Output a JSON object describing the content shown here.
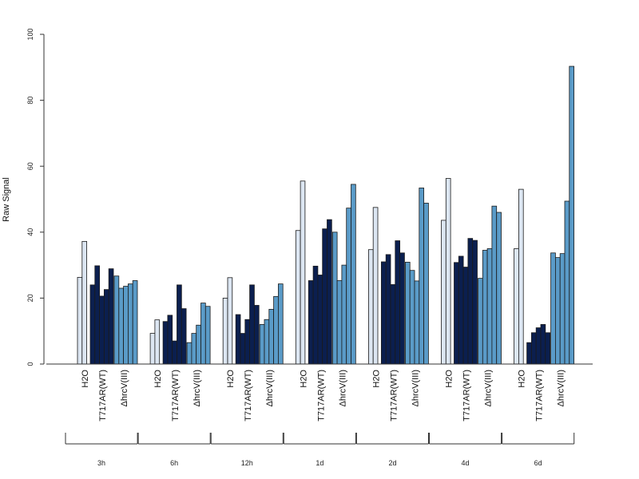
{
  "chart_data": {
    "type": "bar",
    "ylabel": "Raw Signal",
    "xlabel": "",
    "title": "",
    "ylim": [
      0,
      100
    ],
    "yticks": [
      "0",
      "20",
      "40",
      "60",
      "80",
      "100"
    ],
    "conditions": [
      "H2O",
      "T717AR(WT)",
      "ΔhrcV(III)"
    ],
    "condition_colors": [
      "#dce6f2",
      "#0b1f4f",
      "#5a9bc8"
    ],
    "groups": [
      {
        "label": "3h",
        "series": [
          {
            "condition": "H2O",
            "values": [
              26.3,
              37.2
            ]
          },
          {
            "condition": "T717AR(WT)",
            "values": [
              24.0,
              29.8,
              20.6,
              22.6,
              28.9
            ]
          },
          {
            "condition": "ΔhrcV(III)",
            "values": [
              26.7,
              23.0,
              23.6,
              24.3,
              25.3
            ]
          }
        ]
      },
      {
        "label": "6h",
        "series": [
          {
            "condition": "H2O",
            "values": [
              9.3,
              13.4
            ]
          },
          {
            "condition": "T717AR(WT)",
            "values": [
              12.9,
              14.8,
              7.0,
              24.0,
              16.8
            ]
          },
          {
            "condition": "ΔhrcV(III)",
            "values": [
              6.5,
              9.3,
              11.8,
              18.5,
              17.5
            ]
          }
        ]
      },
      {
        "label": "12h",
        "series": [
          {
            "condition": "H2O",
            "values": [
              20.0,
              26.2
            ]
          },
          {
            "condition": "T717AR(WT)",
            "values": [
              15.0,
              9.3,
              13.5,
              24.0,
              17.8
            ]
          },
          {
            "condition": "ΔhrcV(III)",
            "values": [
              12.0,
              13.5,
              16.6,
              20.5,
              24.3
            ]
          }
        ]
      },
      {
        "label": "1d",
        "series": [
          {
            "condition": "H2O",
            "values": [
              40.5,
              55.5
            ]
          },
          {
            "condition": "T717AR(WT)",
            "values": [
              25.3,
              29.7,
              27.0,
              41.0,
              43.8
            ]
          },
          {
            "condition": "ΔhrcV(III)",
            "values": [
              40.0,
              25.3,
              30.0,
              47.3,
              54.5
            ]
          }
        ]
      },
      {
        "label": "2d",
        "series": [
          {
            "condition": "H2O",
            "values": [
              34.7,
              47.5
            ]
          },
          {
            "condition": "T717AR(WT)",
            "values": [
              31.0,
              33.2,
              24.1,
              37.4,
              33.7
            ]
          },
          {
            "condition": "ΔhrcV(III)",
            "values": [
              30.9,
              28.4,
              25.2,
              53.4,
              48.8
            ]
          }
        ]
      },
      {
        "label": "4d",
        "series": [
          {
            "condition": "H2O",
            "values": [
              43.6,
              56.3
            ]
          },
          {
            "condition": "T717AR(WT)",
            "values": [
              30.8,
              32.7,
              29.4,
              38.1,
              37.5
            ]
          },
          {
            "condition": "ΔhrcV(III)",
            "values": [
              26.0,
              34.5,
              35.0,
              47.9,
              46.0
            ]
          }
        ]
      },
      {
        "label": "6d",
        "series": [
          {
            "condition": "H2O",
            "values": [
              35.0,
              53.0
            ]
          },
          {
            "condition": "T717AR(WT)",
            "values": [
              6.5,
              9.5,
              11.0,
              12.0,
              9.5
            ]
          },
          {
            "condition": "ΔhrcV(III)",
            "values": [
              33.7,
              32.3,
              33.5,
              49.4,
              90.3
            ]
          }
        ]
      }
    ],
    "grid": false,
    "legend": "none"
  }
}
